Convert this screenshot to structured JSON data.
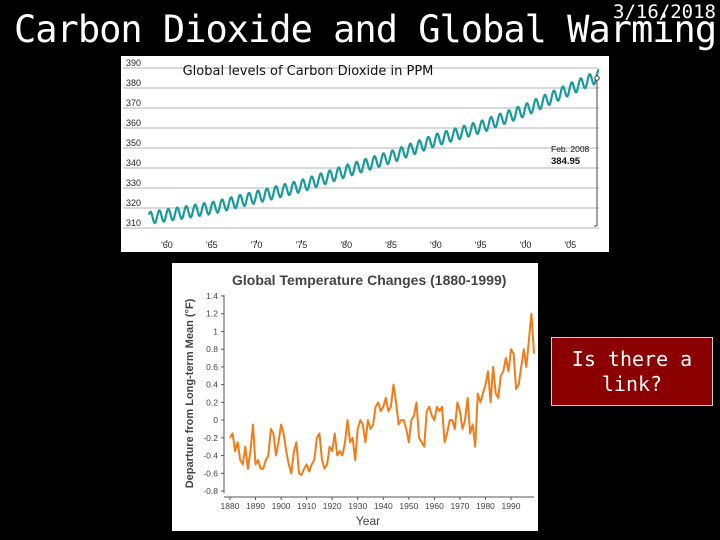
{
  "slide": {
    "title": "Carbon Dioxide and Global Warming",
    "date": "3/16/2018",
    "callout": "Is there a link?"
  },
  "chart_data": [
    {
      "type": "line",
      "title": "Global levels of Carbon Dioxide in PPM",
      "xlabel": "",
      "ylabel": "",
      "xlim": [
        1958,
        2008.2
      ],
      "ylim": [
        305,
        392
      ],
      "x_ticks": [
        1960,
        1965,
        1970,
        1975,
        1980,
        1985,
        1990,
        1995,
        2000,
        2005
      ],
      "x_tick_labels": [
        "'60",
        "'65",
        "'70",
        "'75",
        "'80",
        "'85",
        "'90",
        "'95",
        "'00",
        "'05"
      ],
      "y_ticks": [
        310,
        320,
        330,
        340,
        350,
        360,
        370,
        380,
        390
      ],
      "grid": true,
      "color": "#1a9b9b",
      "trend_anchors": {
        "x": [
          1958,
          1965,
          1970,
          1975,
          1980,
          1985,
          1990,
          1995,
          2000,
          2005,
          2008.2
        ],
        "y": [
          315,
          320,
          325.5,
          331,
          338.5,
          345.5,
          354,
          360.5,
          369,
          379.5,
          386
        ]
      },
      "seasonal_amplitude_ppm": 3,
      "annotation": {
        "line1": "Feb. 2008",
        "line2": "384.95",
        "x": 2008.2,
        "y": 384.95
      }
    },
    {
      "type": "line",
      "title": "Global Temperature Changes (1880-1999)",
      "xlabel": "Year",
      "ylabel": "Departure from Long-term Mean (°F)",
      "xlim": [
        1880,
        1999
      ],
      "ylim": [
        -0.8,
        1.4
      ],
      "x_ticks": [
        1880,
        1890,
        1900,
        1910,
        1920,
        1930,
        1940,
        1950,
        1960,
        1970,
        1980,
        1990
      ],
      "y_ticks": [
        -0.8,
        -0.6,
        -0.4,
        -0.2,
        0,
        0.2,
        0.4,
        0.6,
        0.8,
        1,
        1.2,
        1.4
      ],
      "grid": false,
      "color": "#ef7d1a",
      "x": [
        1880,
        1881,
        1882,
        1883,
        1884,
        1885,
        1886,
        1887,
        1888,
        1889,
        1890,
        1891,
        1892,
        1893,
        1894,
        1895,
        1896,
        1897,
        1898,
        1899,
        1900,
        1901,
        1902,
        1903,
        1904,
        1905,
        1906,
        1907,
        1908,
        1909,
        1910,
        1911,
        1912,
        1913,
        1914,
        1915,
        1916,
        1917,
        1918,
        1919,
        1920,
        1921,
        1922,
        1923,
        1924,
        1925,
        1926,
        1927,
        1928,
        1929,
        1930,
        1931,
        1932,
        1933,
        1934,
        1935,
        1936,
        1937,
        1938,
        1939,
        1940,
        1941,
        1942,
        1943,
        1944,
        1945,
        1946,
        1947,
        1948,
        1949,
        1950,
        1951,
        1952,
        1953,
        1954,
        1955,
        1956,
        1957,
        1958,
        1959,
        1960,
        1961,
        1962,
        1963,
        1964,
        1965,
        1966,
        1967,
        1968,
        1969,
        1970,
        1971,
        1972,
        1973,
        1974,
        1975,
        1976,
        1977,
        1978,
        1979,
        1980,
        1981,
        1982,
        1983,
        1984,
        1985,
        1986,
        1987,
        1988,
        1989,
        1990,
        1991,
        1992,
        1993,
        1994,
        1995,
        1996,
        1997,
        1998,
        1999
      ],
      "values": [
        -0.2,
        -0.15,
        -0.35,
        -0.25,
        -0.45,
        -0.5,
        -0.3,
        -0.55,
        -0.35,
        -0.05,
        -0.5,
        -0.45,
        -0.55,
        -0.55,
        -0.45,
        -0.4,
        -0.1,
        -0.15,
        -0.4,
        -0.25,
        -0.05,
        -0.15,
        -0.35,
        -0.5,
        -0.6,
        -0.35,
        -0.25,
        -0.6,
        -0.62,
        -0.55,
        -0.5,
        -0.58,
        -0.5,
        -0.45,
        -0.2,
        -0.15,
        -0.45,
        -0.55,
        -0.5,
        -0.3,
        -0.35,
        -0.15,
        -0.4,
        -0.35,
        -0.4,
        -0.25,
        0.0,
        -0.25,
        -0.2,
        -0.45,
        -0.1,
        0.0,
        -0.05,
        -0.25,
        0.0,
        -0.1,
        -0.05,
        0.15,
        0.2,
        0.1,
        0.15,
        0.25,
        0.1,
        0.15,
        0.4,
        0.2,
        -0.05,
        0.0,
        0.0,
        -0.1,
        -0.25,
        0.0,
        0.05,
        0.2,
        -0.2,
        -0.25,
        -0.3,
        0.1,
        0.15,
        0.05,
        0.0,
        0.15,
        0.1,
        0.15,
        -0.25,
        -0.15,
        0.0,
        0.0,
        -0.1,
        0.2,
        0.1,
        -0.1,
        0.0,
        0.25,
        -0.15,
        -0.05,
        -0.3,
        0.3,
        0.2,
        0.3,
        0.4,
        0.55,
        0.2,
        0.6,
        0.3,
        0.25,
        0.5,
        0.55,
        0.7,
        0.55,
        0.8,
        0.75,
        0.35,
        0.4,
        0.6,
        0.8,
        0.6,
        0.9,
        1.2,
        0.75
      ]
    }
  ]
}
